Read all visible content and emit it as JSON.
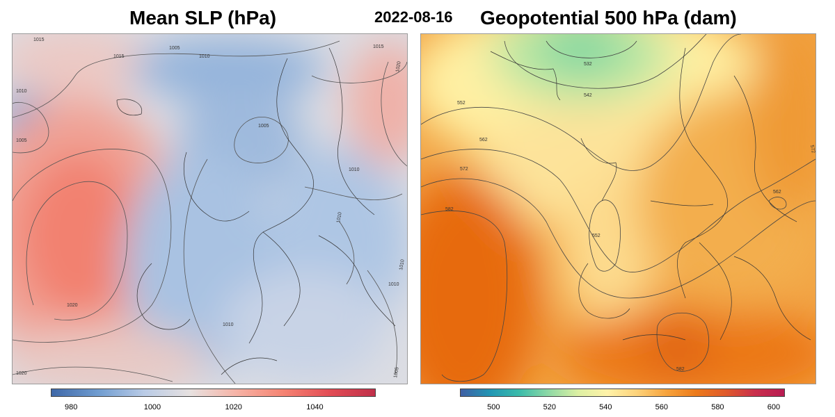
{
  "header": {
    "left_title": "Mean SLP (hPa)",
    "date": "2022-08-16",
    "right_title": "Geopotential 500 hPa (dam)"
  },
  "slp_panel": {
    "contour_labels": [
      "1015",
      "1005",
      "1010",
      "1015",
      "1020",
      "1010",
      "1005",
      "1005",
      "1010",
      "1010",
      "1020",
      "1010",
      "1010",
      "1010",
      "1005",
      "1015",
      "1020"
    ],
    "colorbar": {
      "min": 975,
      "max": 1055,
      "ticks": [
        "980",
        "1000",
        "1020",
        "1040"
      ],
      "tick_values": [
        980,
        1000,
        1020,
        1040
      ],
      "colors": [
        "#3f68a8",
        "#6f9cd0",
        "#b9cbe6",
        "#e7e1e0",
        "#f6b3a6",
        "#f58473",
        "#e34d55",
        "#c0304a"
      ]
    }
  },
  "z500_panel": {
    "contour_labels": [
      "532",
      "542",
      "552",
      "562",
      "572",
      "582",
      "552",
      "562",
      "582",
      "572"
    ],
    "colorbar": {
      "min": 488,
      "max": 604,
      "ticks": [
        "500",
        "520",
        "540",
        "560",
        "580",
        "600"
      ],
      "tick_values": [
        500,
        520,
        540,
        560,
        580,
        600
      ],
      "colors": [
        "#3f5fa4",
        "#2196b4",
        "#3bbcaa",
        "#8fd9a5",
        "#ddf0a3",
        "#fff2a8",
        "#fdd27a",
        "#f7a33c",
        "#ec7a1a",
        "#e05a2a",
        "#c92f4c",
        "#b81c52"
      ]
    }
  }
}
